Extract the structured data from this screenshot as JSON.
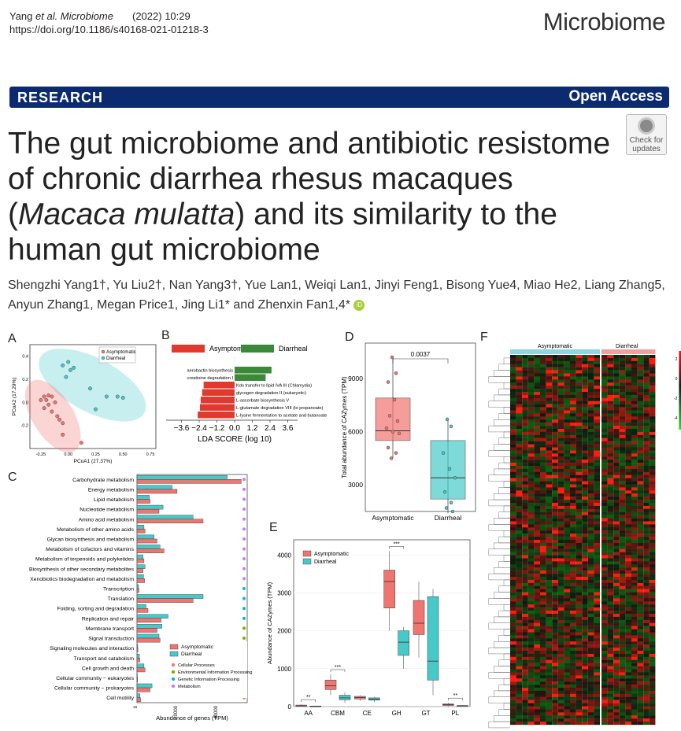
{
  "header": {
    "citation_prefix": "Yang ",
    "citation_journal": "et al. Microbiome",
    "year": "(2022) 10:29",
    "doi": "https://doi.org/10.1186/s40168-021-01218-3",
    "journal_name": "Microbiome"
  },
  "banner": {
    "left": "RESEARCH",
    "right": "Open Access"
  },
  "title_parts": {
    "a": "The gut microbiome and antibiotic resistome of chronic diarrhea rhesus macaques (",
    "b": "Macaca mulatta",
    "c": ") and its similarity to the human gut microbiome"
  },
  "check_updates": {
    "line1": "Check for",
    "line2": "updates"
  },
  "authors_line1": "Shengzhi Yang1†, Yu Liu2†, Nan Yang3†, Yue Lan1, Weiqi Lan1, Jinyi Feng1, Bisong Yue4, Miao He2, Liang Zhang5,",
  "authors_line2": "Anyun Zhang1, Megan Price1, Jing Li1* and Zhenxin Fan1,4*",
  "orcid": "iD",
  "panels": {
    "a": "A",
    "b": "B",
    "c": "C",
    "d": "D",
    "e": "E",
    "f": "F"
  },
  "chart_data": [
    {
      "panel": "A",
      "type": "scatter",
      "xlabel": "PCoA1 (27.37%)",
      "ylabel": "PCoA2 (17.29%)",
      "legend": [
        "Asymptomatic",
        "Diarrheal"
      ],
      "xticks": [
        "-0.25",
        "0.00",
        "0.25",
        "0.50",
        "0.75"
      ],
      "yticks": [
        "-0.2",
        "0.0",
        "0.2",
        "0.4"
      ],
      "series": [
        {
          "name": "Asymptomatic",
          "points": [
            [
              -0.25,
              0.02
            ],
            [
              -0.22,
              0.05
            ],
            [
              -0.2,
              0.02
            ],
            [
              -0.18,
              -0.02
            ],
            [
              -0.15,
              0.05
            ],
            [
              -0.12,
              0.0
            ],
            [
              -0.22,
              -0.05
            ],
            [
              -0.1,
              -0.12
            ],
            [
              -0.08,
              -0.15
            ],
            [
              -0.05,
              -0.18
            ],
            [
              -0.15,
              -0.08
            ],
            [
              0.12,
              -0.35
            ],
            [
              -0.18,
              0.06
            ],
            [
              -0.05,
              -0.28
            ]
          ]
        },
        {
          "name": "Diarrheal",
          "points": [
            [
              -0.05,
              0.32
            ],
            [
              0.0,
              0.35
            ],
            [
              0.05,
              0.3
            ],
            [
              0.02,
              0.28
            ],
            [
              -0.02,
              0.22
            ],
            [
              0.2,
              0.12
            ],
            [
              0.35,
              0.05
            ],
            [
              0.45,
              0.05
            ],
            [
              0.5,
              0.04
            ],
            [
              0.25,
              -0.06
            ]
          ]
        }
      ]
    },
    {
      "panel": "B",
      "type": "bar",
      "xlabel": "LDA SCORE (log 10)",
      "legend": [
        "Asymptomatic",
        "Diarrheal"
      ],
      "xticks": [
        "−3.6",
        "−2.4",
        "−1.2",
        "0.0",
        "1.2",
        "2.4",
        "3.6"
      ],
      "categories": [
        "aerobactin biosynthesis",
        "creatinine degradation I",
        "Kdo transfer to lipid IVA III (Chlamydia)",
        "glycogen degradation II (eukaryotic)",
        "L-ascorbate biosynthesis V",
        "L-glutamate degradation VIII (to propanoate)",
        "L-lysine fermentation to acetate and butanoate"
      ],
      "values": [
        2.5,
        2.1,
        -2.1,
        -2.2,
        -2.3,
        -2.35,
        -2.5
      ]
    },
    {
      "panel": "C",
      "type": "bar",
      "xlabel": "Abundance of genes (TPM)",
      "legend": [
        "Asymptomatic",
        "Diarrheal"
      ],
      "xticks": [
        "0",
        "20000",
        "40000"
      ],
      "categories": [
        "Carbohydrate metabolism",
        "Energy metabolism",
        "Lipid metabolism",
        "Nucleotide metabolism",
        "Amino acid metabolism",
        "Metabolism of other amino acids",
        "Glycan biosynthesis and metabolism",
        "Metabolism of cofactors and vitamins",
        "Metabolism of terpenoids and polyketides",
        "Biosynthesis of other secondary metabolites",
        "Xenobiotics biodegradation and metabolism",
        "Transcription",
        "Translation",
        "Folding, sorting and degradation",
        "Replication and repair",
        "Membrane transport",
        "Signal transduction",
        "Signaling molecules and interaction",
        "Transport and catabolism",
        "Cell growth and death",
        "Cellular community − eukaryotes",
        "Cellular community − prokaryotes",
        "Cell motility"
      ],
      "series": [
        {
          "name": "Asymptomatic",
          "values": [
            52000,
            20000,
            6500,
            11000,
            33000,
            4000,
            10000,
            13500,
            3500,
            3000,
            3800,
            1000,
            28000,
            5500,
            12000,
            10000,
            11500,
            500,
            1400,
            4000,
            300,
            6500,
            1800
          ]
        },
        {
          "name": "Diarrheal",
          "values": [
            45000,
            17500,
            6200,
            13000,
            28000,
            3500,
            8500,
            11500,
            3000,
            4000,
            3300,
            800,
            33000,
            4500,
            15500,
            12500,
            11000,
            400,
            1200,
            3500,
            200,
            7500,
            1500
          ]
        }
      ],
      "categories_legend": [
        "Cellular Processes",
        "Environmental Information Processing",
        "Genetic Information Processing",
        "Metabolism"
      ]
    },
    {
      "panel": "D",
      "type": "box",
      "ylabel": "Total abundance of CAZymes (TPM)",
      "yticks": [
        "3000",
        "6000",
        "9000"
      ],
      "categories": [
        "Asymptomatic",
        "Diarrheal"
      ],
      "annotation": "0.0037",
      "boxes": [
        {
          "q1": 5500,
          "median": 6050,
          "q3": 7900,
          "min": 4500,
          "max": 10200
        },
        {
          "q1": 2200,
          "median": 3400,
          "q3": 5500,
          "min": 1400,
          "max": 6700
        }
      ]
    },
    {
      "panel": "E",
      "type": "box",
      "ylabel": "Abundance of CAZymes (TPM)",
      "legend": [
        "Asymptomatic",
        "Diarrheal"
      ],
      "yticks": [
        "0",
        "1000",
        "2000",
        "3000",
        "4000"
      ],
      "categories": [
        "AA",
        "CBM",
        "CE",
        "GH",
        "GT",
        "PL"
      ],
      "annotations": [
        "**",
        "***",
        "",
        "***",
        "",
        "**"
      ],
      "boxes_asym": [
        {
          "q1": 10,
          "median": 20,
          "q3": 40,
          "min": 0,
          "max": 60
        },
        {
          "q1": 450,
          "median": 550,
          "q3": 700,
          "min": 300,
          "max": 850
        },
        {
          "q1": 200,
          "median": 240,
          "q3": 270,
          "min": 150,
          "max": 300
        },
        {
          "q1": 2600,
          "median": 3300,
          "q3": 3600,
          "min": 2000,
          "max": 4100
        },
        {
          "q1": 1900,
          "median": 2200,
          "q3": 2800,
          "min": 1300,
          "max": 3300
        },
        {
          "q1": 30,
          "median": 50,
          "q3": 70,
          "min": 10,
          "max": 100
        }
      ],
      "boxes_diar": [
        {
          "q1": 5,
          "median": 10,
          "q3": 15,
          "min": 0,
          "max": 25
        },
        {
          "q1": 180,
          "median": 230,
          "q3": 300,
          "min": 100,
          "max": 380
        },
        {
          "q1": 170,
          "median": 200,
          "q3": 230,
          "min": 120,
          "max": 260
        },
        {
          "q1": 1350,
          "median": 1700,
          "q3": 2000,
          "min": 1000,
          "max": 2100
        },
        {
          "q1": 700,
          "median": 1200,
          "q3": 2900,
          "min": 300,
          "max": 3100
        },
        {
          "q1": 10,
          "median": 20,
          "q3": 30,
          "min": 0,
          "max": 40
        }
      ]
    },
    {
      "panel": "F",
      "type": "heatmap",
      "groups": [
        "Asymptomatic",
        "Diarrheal"
      ],
      "scale_ticks": [
        "2",
        "0",
        "-2",
        "-4"
      ]
    }
  ]
}
